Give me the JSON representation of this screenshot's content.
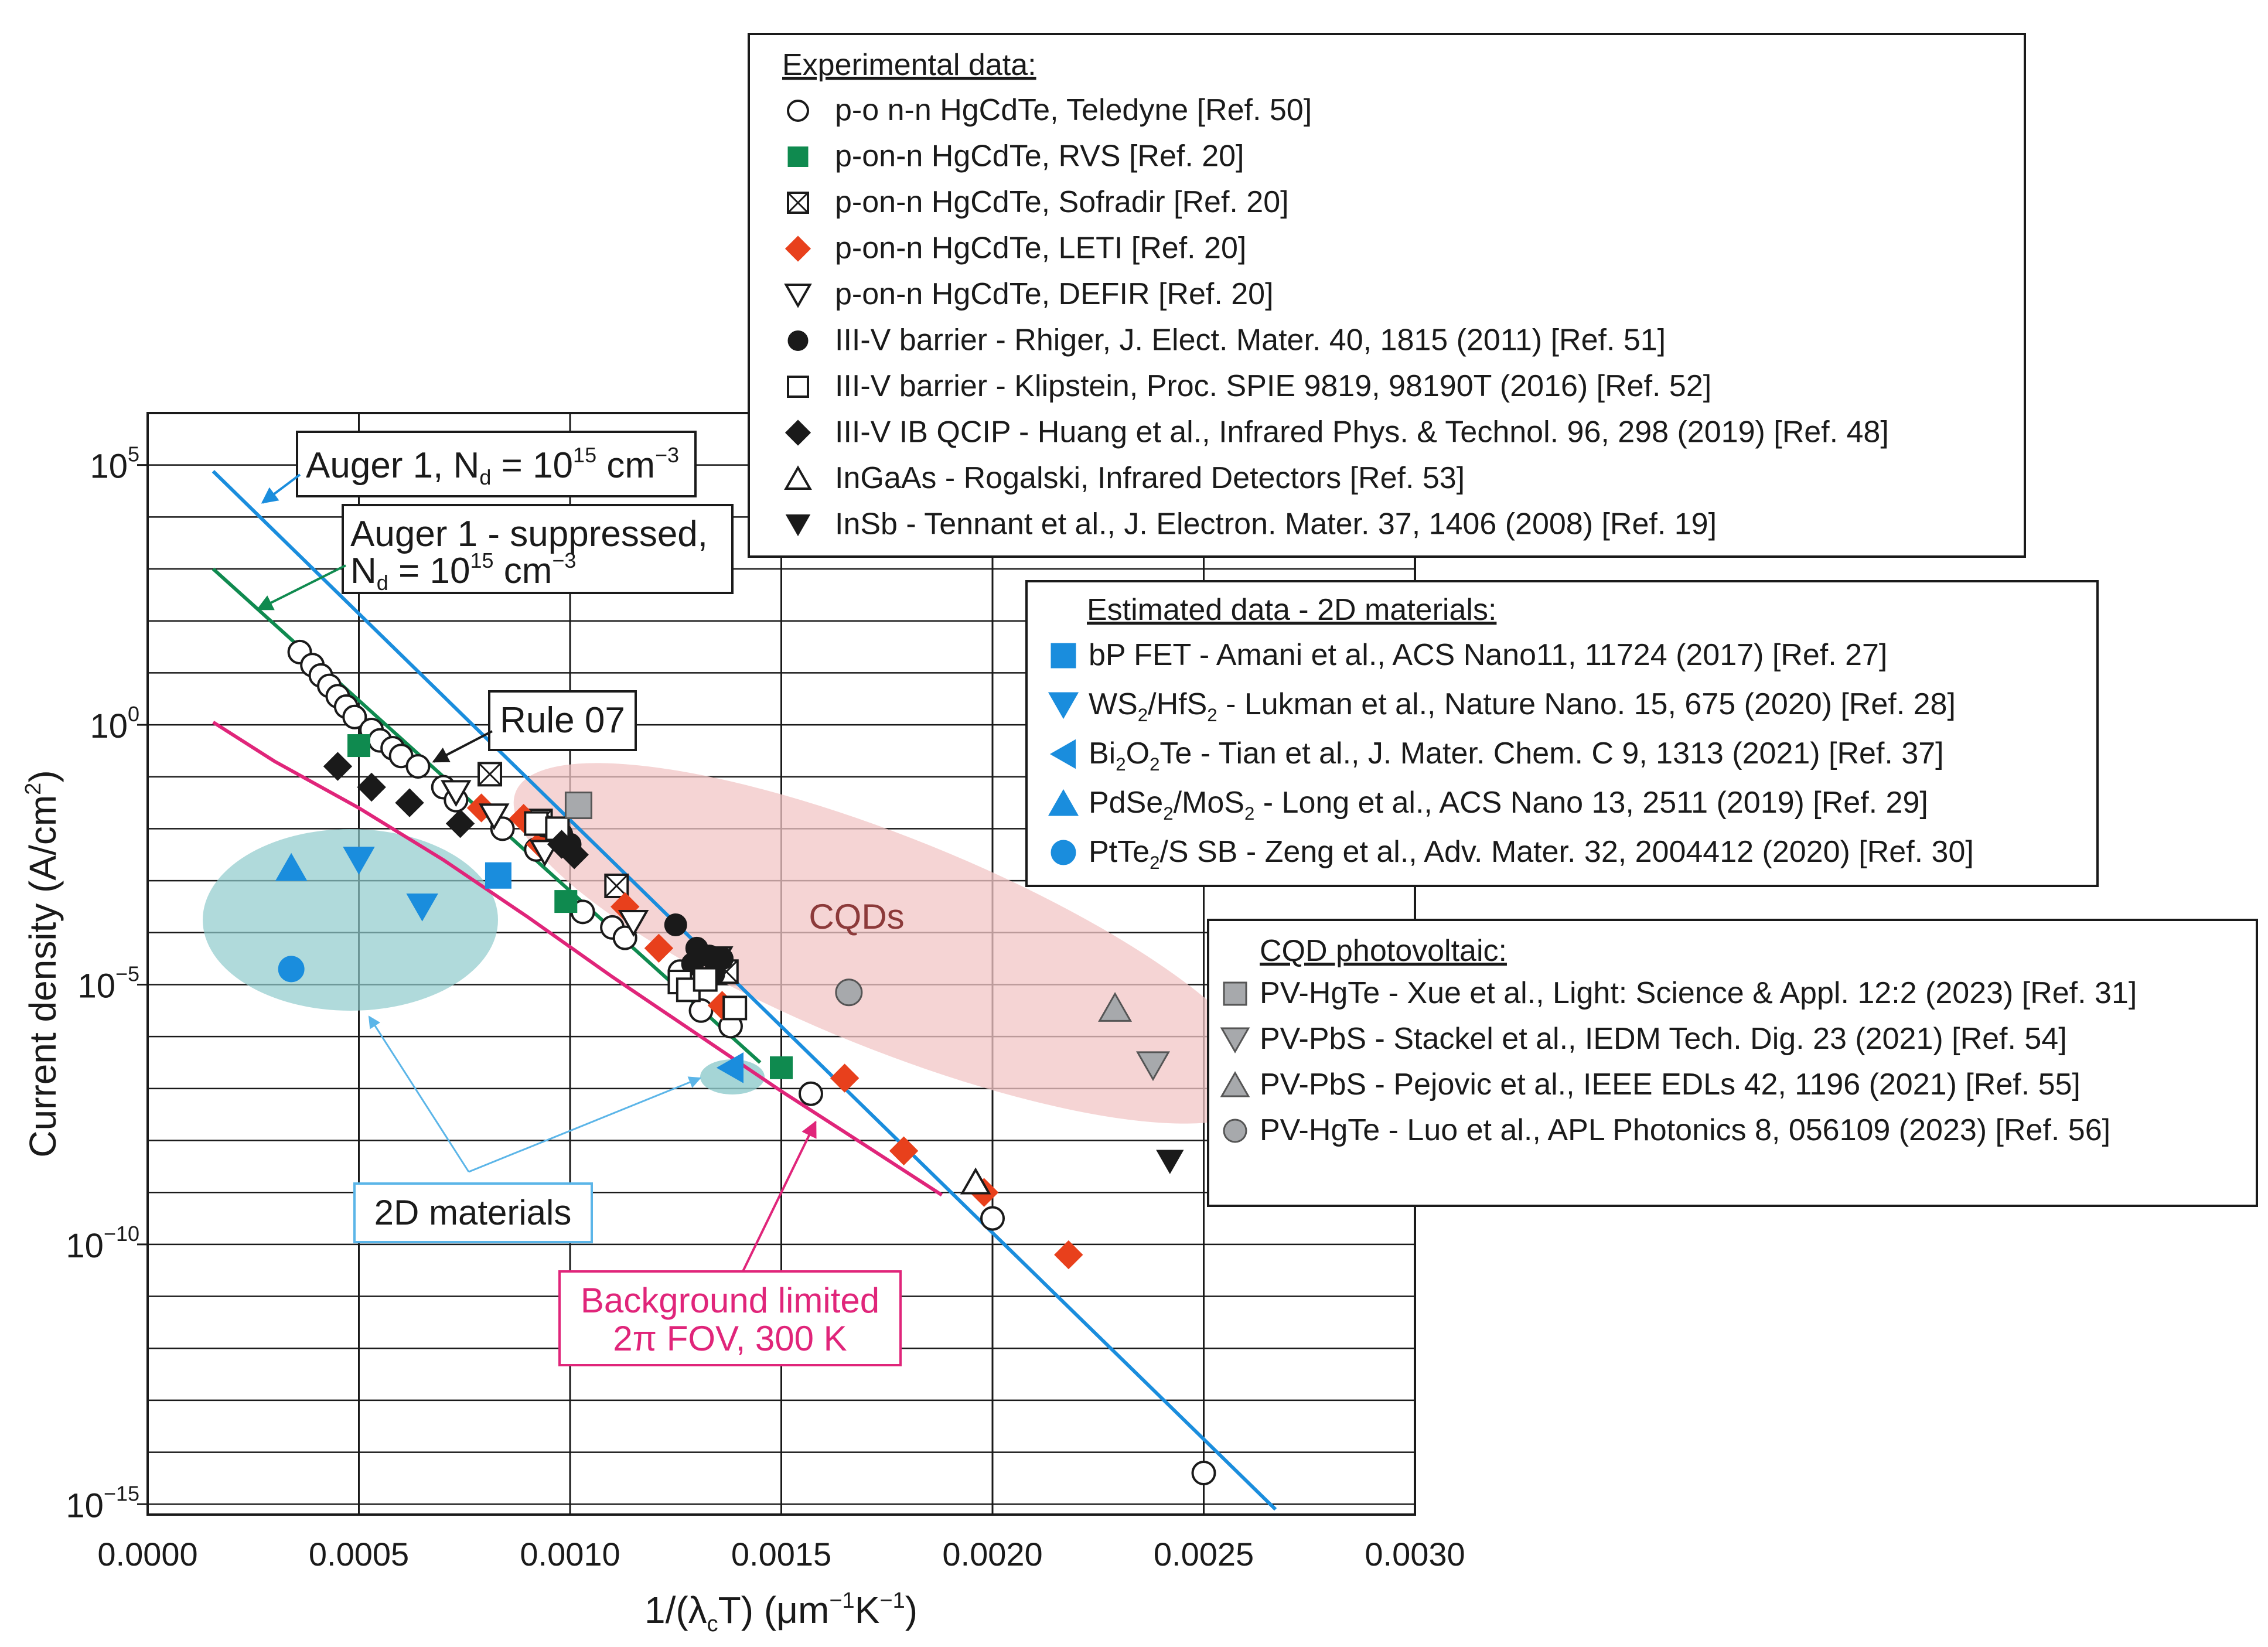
{
  "chart_data": {
    "type": "scatter",
    "xlabel": "1/(λcT) (μm⁻¹K⁻¹)",
    "ylabel": "Current density (A/cm²)",
    "x_ticks": [
      "0.0000",
      "0.0005",
      "0.0010",
      "0.0015",
      "0.0020",
      "0.0025",
      "0.0030"
    ],
    "y_ticks": [
      {
        "exp": 5,
        "label": "10",
        "sup": "5"
      },
      {
        "exp": 0,
        "label": "10",
        "sup": "0"
      },
      {
        "exp": -5,
        "label": "10",
        "sup": "−5"
      },
      {
        "exp": -10,
        "label": "10",
        "sup": "−10"
      },
      {
        "exp": -15,
        "label": "10",
        "sup": "−15"
      }
    ],
    "xlim": [
      0,
      0.003
    ],
    "ylim_log10": [
      -15.2,
      6
    ],
    "grid": true,
    "curves": [
      {
        "name": "Auger 1, Nd = 10^15 cm^-3",
        "color": "#1a8ddd",
        "points": [
          [
            0.000155,
            4.88
          ],
          [
            0.00267,
            -15.1
          ]
        ]
      },
      {
        "name": "Auger 1 - suppressed, Nd = 10^15 cm^-3",
        "color": "#0f8a4f",
        "points": [
          [
            0.000155,
            3.0
          ],
          [
            0.00145,
            -6.5
          ]
        ]
      },
      {
        "name": "Background limited, 2π FOV, 300 K",
        "color": "#e0257a",
        "points": [
          [
            0.000155,
            0.05
          ],
          [
            0.0003,
            -0.7
          ],
          [
            0.0005,
            -1.6
          ],
          [
            0.0007,
            -2.6
          ],
          [
            0.0009,
            -3.7
          ],
          [
            0.0011,
            -4.85
          ],
          [
            0.0013,
            -5.95
          ],
          [
            0.0015,
            -7.05
          ],
          [
            0.0017,
            -8.1
          ],
          [
            0.00188,
            -9.05
          ]
        ]
      }
    ],
    "experimental_legend_title": "Experimental data:",
    "experimental_series": [
      {
        "name": "p-o n-n HgCdTe, Teledyne [Ref. 50]",
        "marker": "circle-open",
        "color": "#1a1a1a",
        "points": [
          [
            0.00036,
            1.4
          ],
          [
            0.00039,
            1.15
          ],
          [
            0.00041,
            0.95
          ],
          [
            0.00043,
            0.75
          ],
          [
            0.00045,
            0.55
          ],
          [
            0.00047,
            0.35
          ],
          [
            0.00049,
            0.15
          ],
          [
            0.00053,
            -0.1
          ],
          [
            0.00055,
            -0.3
          ],
          [
            0.00058,
            -0.45
          ],
          [
            0.0006,
            -0.6
          ],
          [
            0.00064,
            -0.8
          ],
          [
            0.0007,
            -1.2
          ],
          [
            0.00073,
            -1.45
          ],
          [
            0.00084,
            -2.0
          ],
          [
            0.00092,
            -2.4
          ],
          [
            0.00103,
            -3.6
          ],
          [
            0.0011,
            -3.9
          ],
          [
            0.00113,
            -4.1
          ],
          [
            0.00126,
            -4.75
          ],
          [
            0.00131,
            -5.5
          ],
          [
            0.00138,
            -5.8
          ],
          [
            0.00157,
            -7.1
          ],
          [
            0.002,
            -9.5
          ],
          [
            0.0025,
            -14.4
          ]
        ]
      },
      {
        "name": "p-on-n HgCdTe, RVS [Ref. 20]",
        "marker": "square",
        "color": "#0f8a4f",
        "points": [
          [
            0.0005,
            -0.4
          ],
          [
            0.00099,
            -3.4
          ],
          [
            0.0015,
            -6.6
          ]
        ]
      },
      {
        "name": "p-on-n HgCdTe, Sofradir [Ref. 20]",
        "marker": "square-x",
        "color": "#1a1a1a",
        "points": [
          [
            0.00081,
            -0.95
          ],
          [
            0.00093,
            -1.85
          ],
          [
            0.00111,
            -3.1
          ],
          [
            0.00137,
            -4.75
          ]
        ]
      },
      {
        "name": "p-on-n HgCdTe, LETI [Ref. 20]",
        "marker": "diamond",
        "color": "#e8401c",
        "points": [
          [
            0.00079,
            -1.6
          ],
          [
            0.00089,
            -1.8
          ],
          [
            0.00093,
            -2.3
          ],
          [
            0.00113,
            -3.5
          ],
          [
            0.00121,
            -4.3
          ],
          [
            0.00136,
            -5.4
          ],
          [
            0.00165,
            -6.8
          ],
          [
            0.00179,
            -8.2
          ],
          [
            0.00198,
            -9.0
          ],
          [
            0.00218,
            -10.2
          ]
        ]
      },
      {
        "name": "p-on-n HgCdTe, DEFIR [Ref. 20]",
        "marker": "triangle-down-open",
        "color": "#1a1a1a",
        "points": [
          [
            0.00073,
            -1.3
          ],
          [
            0.00082,
            -1.75
          ],
          [
            0.00094,
            -2.45
          ],
          [
            0.00115,
            -3.8
          ],
          [
            0.00135,
            -4.5
          ]
        ]
      },
      {
        "name": "III-V barrier -  Rhiger, J. Elect. Mater. 40, 1815 (2011) [Ref. 51]",
        "marker": "circle",
        "color": "#1a1a1a",
        "points": [
          [
            0.00125,
            -3.85
          ],
          [
            0.0013,
            -4.3
          ],
          [
            0.00133,
            -4.45
          ],
          [
            0.00129,
            -4.6
          ],
          [
            0.00134,
            -4.8
          ],
          [
            0.00136,
            -4.5
          ],
          [
            0.001,
            -2.3
          ],
          [
            0.00098,
            -2.1
          ],
          [
            0.00094,
            -1.95
          ]
        ]
      },
      {
        "name": "III-V barrier -  Klipstein, Proc. SPIE 9819, 98190T (2016) [Ref. 52]",
        "marker": "square-open",
        "color": "#1a1a1a",
        "points": [
          [
            0.00092,
            -1.9
          ],
          [
            0.00097,
            -2.0
          ],
          [
            0.00126,
            -4.95
          ],
          [
            0.00128,
            -5.1
          ],
          [
            0.00132,
            -4.9
          ],
          [
            0.00139,
            -5.45
          ]
        ]
      },
      {
        "name": "III-V IB QCIP -   Huang et al., Infrared Phys. & Technol. 96, 298 (2019) [Ref. 48]",
        "marker": "diamond",
        "color": "#1a1a1a",
        "points": [
          [
            0.00045,
            -0.8
          ],
          [
            0.00053,
            -1.2
          ],
          [
            0.00062,
            -1.5
          ],
          [
            0.00074,
            -1.9
          ],
          [
            0.00101,
            -2.5
          ],
          [
            0.00098,
            -2.3
          ]
        ]
      },
      {
        "name": "InGaAs -  Rogalski, Infrared Detectors [Ref. 53]",
        "marker": "triangle-up-open",
        "color": "#1a1a1a",
        "points": [
          [
            0.00196,
            -8.8
          ]
        ]
      },
      {
        "name": "InSb -  Tennant et al., J. Electron. Mater. 37, 1406 (2008) [Ref. 19]",
        "marker": "triangle-down",
        "color": "#1a1a1a",
        "points": [
          [
            0.00242,
            -8.4
          ]
        ]
      }
    ],
    "estimated_legend_title": "Estimated data - 2D materials:",
    "estimated_series": [
      {
        "name": "bP FET - Amani et al., ACS Nano11, 11724 (2017) [Ref. 27]",
        "marker": "square",
        "color": "#1a8ddd",
        "points": [
          [
            0.00083,
            -2.9
          ]
        ]
      },
      {
        "name": "WS2/HfS2 - Lukman et al., Nature Nano. 15, 675 (2020) [Ref. 28]",
        "marker": "triangle-down",
        "color": "#1a8ddd",
        "points": [
          [
            0.0005,
            -2.6
          ],
          [
            0.00065,
            -3.5
          ]
        ]
      },
      {
        "name": "Bi2O2Te - Tian et al., J. Mater. Chem. C 9, 1313 (2021) [Ref. 37]",
        "marker": "triangle-left",
        "color": "#1a8ddd",
        "points": [
          [
            0.00138,
            -6.6
          ]
        ]
      },
      {
        "name": "PdSe2/MoS2 - Long et al., ACS Nano 13, 2511 (2019) [Ref. 29]",
        "marker": "triangle-up",
        "color": "#1a8ddd",
        "points": [
          [
            0.00034,
            -2.75
          ]
        ]
      },
      {
        "name": "PtTe2/S  SB - Zeng et al., Adv. Mater. 32, 2004412 (2020) [Ref. 30]",
        "marker": "circle",
        "color": "#1a8ddd",
        "points": [
          [
            0.00034,
            -4.7
          ]
        ]
      }
    ],
    "cqd_legend_title": "CQD photovoltaic:",
    "cqd_series": [
      {
        "name": "PV-HgTe - Xue et al., Light: Science & Appl. 12:2 (2023) [Ref. 31]",
        "marker": "square",
        "color": "#a7a9ac",
        "points": [
          [
            0.00102,
            -1.55
          ]
        ]
      },
      {
        "name": "PV-PbS - Stackel et al., IEDM Tech. Dig. 23 (2021) [Ref. 54]",
        "marker": "triangle-down",
        "color": "#a7a9ac",
        "points": [
          [
            0.00238,
            -6.55
          ]
        ]
      },
      {
        "name": "PV-PbS - Pejovic et al., IEEE EDLs 42, 1196 (2021) [Ref. 55]",
        "marker": "triangle-up",
        "color": "#a7a9ac",
        "points": [
          [
            0.00229,
            -5.45
          ]
        ]
      },
      {
        "name": "PV-HgTe - Luo et al., APL Photonics 8, 056109 (2023) [Ref. 56]",
        "marker": "circle",
        "color": "#a7a9ac",
        "points": [
          [
            0.00166,
            -5.15
          ]
        ]
      }
    ],
    "regions": [
      {
        "name": "CQDs",
        "label": "CQDs",
        "color": "#f2c5c5"
      },
      {
        "name": "2D materials",
        "label": "2D materials",
        "color": "#8ecbcc"
      }
    ],
    "annotations": {
      "auger1": {
        "text": "Auger 1, N",
        "sub": "d",
        "eq": " = 10",
        "sup": "15",
        "unit": " cm",
        "unit_sup": "−3"
      },
      "auger_supp_line1": "Auger 1 - suppressed,",
      "auger_supp_line2": {
        "text": "N",
        "sub": "d",
        "eq": " = 10",
        "sup": "15",
        "unit": " cm",
        "unit_sup": "−3"
      },
      "rule07": "Rule 07",
      "bg_line1": "Background limited",
      "bg_line2": "2π FOV, 300 K",
      "materials_2d": "2D materials",
      "cqds": "CQDs"
    }
  },
  "legend_text": {
    "exp": [
      {
        "a": "p-o n-n HgCdTe, Teledyne [Ref. 50]"
      },
      {
        "a": "p-on-n HgCdTe, RVS [Ref. 20]"
      },
      {
        "a": "p-on-n HgCdTe, Sofradir [Ref. 20]"
      },
      {
        "a": "p-on-n HgCdTe, LETI [Ref. 20]"
      },
      {
        "a": "p-on-n HgCdTe, DEFIR [Ref. 20]"
      },
      {
        "a": "III-V barrier -  Rhiger, J. Elect. Mater. 40, 1815 (2011) [Ref. 51]"
      },
      {
        "a": "III-V barrier -  Klipstein, Proc. SPIE 9819, 98190T (2016) [Ref. 52]"
      },
      {
        "a": "III-V IB QCIP -   Huang et al., Infrared Phys. & Technol. 96, 298 (2019) [Ref. 48]"
      },
      {
        "a": "InGaAs -  Rogalski, Infrared Detectors [Ref. 53]"
      },
      {
        "a": "InSb -  Tennant et al., J. Electron. Mater. 37, 1406 (2008) [Ref. 19]"
      }
    ],
    "est": [
      {
        "a": "bP FET - Amani et al., ACS Nano11, 11724 (2017) [Ref. 27]"
      },
      {
        "a": "WS",
        "s1": "2",
        "b": "/HfS",
        "s2": "2",
        "c": " - Lukman et al., Nature Nano. 15, 675 (2020) [Ref. 28]"
      },
      {
        "a": "Bi",
        "s1": "2",
        "b": "O",
        "s2": "2",
        "c": "Te - Tian et al., J. Mater. Chem. C 9, 1313 (2021) [Ref. 37]"
      },
      {
        "a": "PdSe",
        "s1": "2",
        "b": "/MoS",
        "s2": "2",
        "c": " - Long et al., ACS Nano 13, 2511 (2019) [Ref. 29]"
      },
      {
        "a": "PtTe",
        "s1": "2",
        "b": "/S  SB - Zeng et al., Adv. Mater. 32, 2004412 (2020) [Ref. 30]"
      }
    ],
    "cqd": [
      {
        "a": "PV-HgTe - Xue et al., Light: Science & Appl. 12:2 (2023) [Ref. 31]"
      },
      {
        "a": "PV-PbS - Stackel et al., IEDM Tech. Dig. 23 (2021) [Ref. 54]"
      },
      {
        "a": "PV-PbS - Pejovic et al., IEEE EDLs 42, 1196 (2021) [Ref. 55]"
      },
      {
        "a": "PV-HgTe - Luo et al., APL Photonics 8, 056109 (2023) [Ref. 56]"
      }
    ]
  },
  "axis_text": {
    "xlabel_main": "1/(λ",
    "xlabel_sub": "c",
    "xlabel_mid": "T) (μm",
    "xlabel_sup1": "−1",
    "xlabel_k": "K",
    "xlabel_sup2": "−1",
    "xlabel_end": ")",
    "ylabel_main": "Current density (A/cm",
    "ylabel_sup": "2",
    "ylabel_end": ")"
  }
}
